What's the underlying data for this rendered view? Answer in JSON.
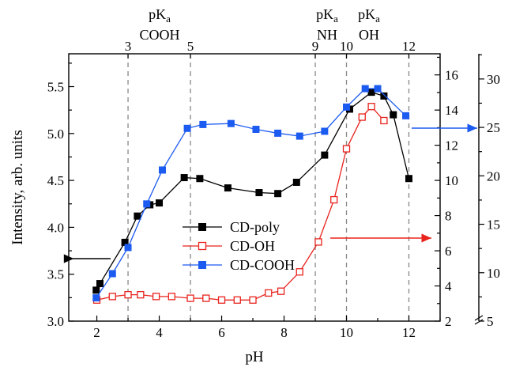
{
  "chart_data": {
    "type": "line",
    "xlabel": "pH",
    "ylabel": "Intensity, arb. units",
    "xlim": [
      1.1,
      13.0
    ],
    "ylim": [
      3.0,
      5.85
    ],
    "x_ticks": [
      2,
      4,
      6,
      8,
      10,
      12
    ],
    "y_ticks": [
      3.0,
      3.5,
      4.0,
      4.5,
      5.0,
      5.5
    ],
    "right_axis_1": {
      "ticks": [
        2,
        4,
        6,
        8,
        10,
        12,
        14,
        16
      ],
      "range": [
        2,
        17.2
      ]
    },
    "right_axis_2": {
      "ticks": [
        5,
        10,
        15,
        20,
        25,
        30
      ],
      "range": [
        5,
        32.6
      ]
    },
    "reference_lines": [
      {
        "x": 3,
        "label": "3"
      },
      {
        "x": 5,
        "label": "5"
      },
      {
        "x": 9,
        "label": "9"
      },
      {
        "x": 10,
        "label": "10"
      },
      {
        "x": 12,
        "label": "12"
      }
    ],
    "annotations": [
      {
        "text": "pK",
        "sub": "a",
        "line2": "COOH"
      },
      {
        "text": "pK",
        "sub": "a",
        "line2": "NH"
      },
      {
        "text": "pK",
        "sub": "a",
        "line2": "OH"
      }
    ],
    "legend_position": "center-left",
    "series": [
      {
        "name": "CD-poly",
        "color": "#000000",
        "marker": "filled-square",
        "axis": "left",
        "x": [
          1.98,
          2.1,
          2.9,
          3.3,
          3.7,
          4.0,
          4.8,
          5.3,
          6.2,
          7.2,
          7.8,
          8.4,
          9.3,
          10.1,
          10.8,
          11.2,
          11.5,
          12.0
        ],
        "y": [
          3.33,
          3.4,
          3.84,
          4.12,
          4.24,
          4.26,
          4.53,
          4.52,
          4.42,
          4.37,
          4.36,
          4.48,
          4.77,
          5.26,
          5.44,
          5.4,
          5.2,
          4.52
        ]
      },
      {
        "name": "CD-OH",
        "color": "#e8231d",
        "marker": "open-square",
        "axis": "right1",
        "x": [
          2.0,
          2.5,
          3.0,
          3.4,
          3.9,
          4.4,
          5.0,
          5.5,
          6.0,
          6.5,
          7.0,
          7.5,
          7.9,
          8.5,
          9.1,
          9.6,
          10.0,
          10.5,
          10.8,
          11.2
        ],
        "y": [
          3.2,
          3.4,
          3.5,
          3.5,
          3.4,
          3.4,
          3.3,
          3.3,
          3.2,
          3.2,
          3.2,
          3.6,
          3.7,
          4.8,
          6.5,
          8.9,
          11.8,
          13.6,
          14.2,
          13.4
        ]
      },
      {
        "name": "CD-COOH",
        "color": "#1c5bf0",
        "marker": "filled-square",
        "axis": "right2",
        "x": [
          1.98,
          2.5,
          3.0,
          3.6,
          4.1,
          4.9,
          5.4,
          6.3,
          7.1,
          7.8,
          8.5,
          9.3,
          10.0,
          10.6,
          11.0,
          11.9
        ],
        "y": [
          7.4,
          9.9,
          12.6,
          17.1,
          20.6,
          24.9,
          25.3,
          25.4,
          24.8,
          24.4,
          24.1,
          24.6,
          27.1,
          29.0,
          29.0,
          26.2
        ]
      }
    ],
    "arrows": [
      {
        "series": "CD-poly",
        "direction": "left",
        "points_to": "left axis"
      },
      {
        "series": "CD-OH",
        "direction": "right",
        "points_to": "right axis 1"
      },
      {
        "series": "CD-COOH",
        "direction": "right",
        "points_to": "right axis 2"
      }
    ]
  }
}
